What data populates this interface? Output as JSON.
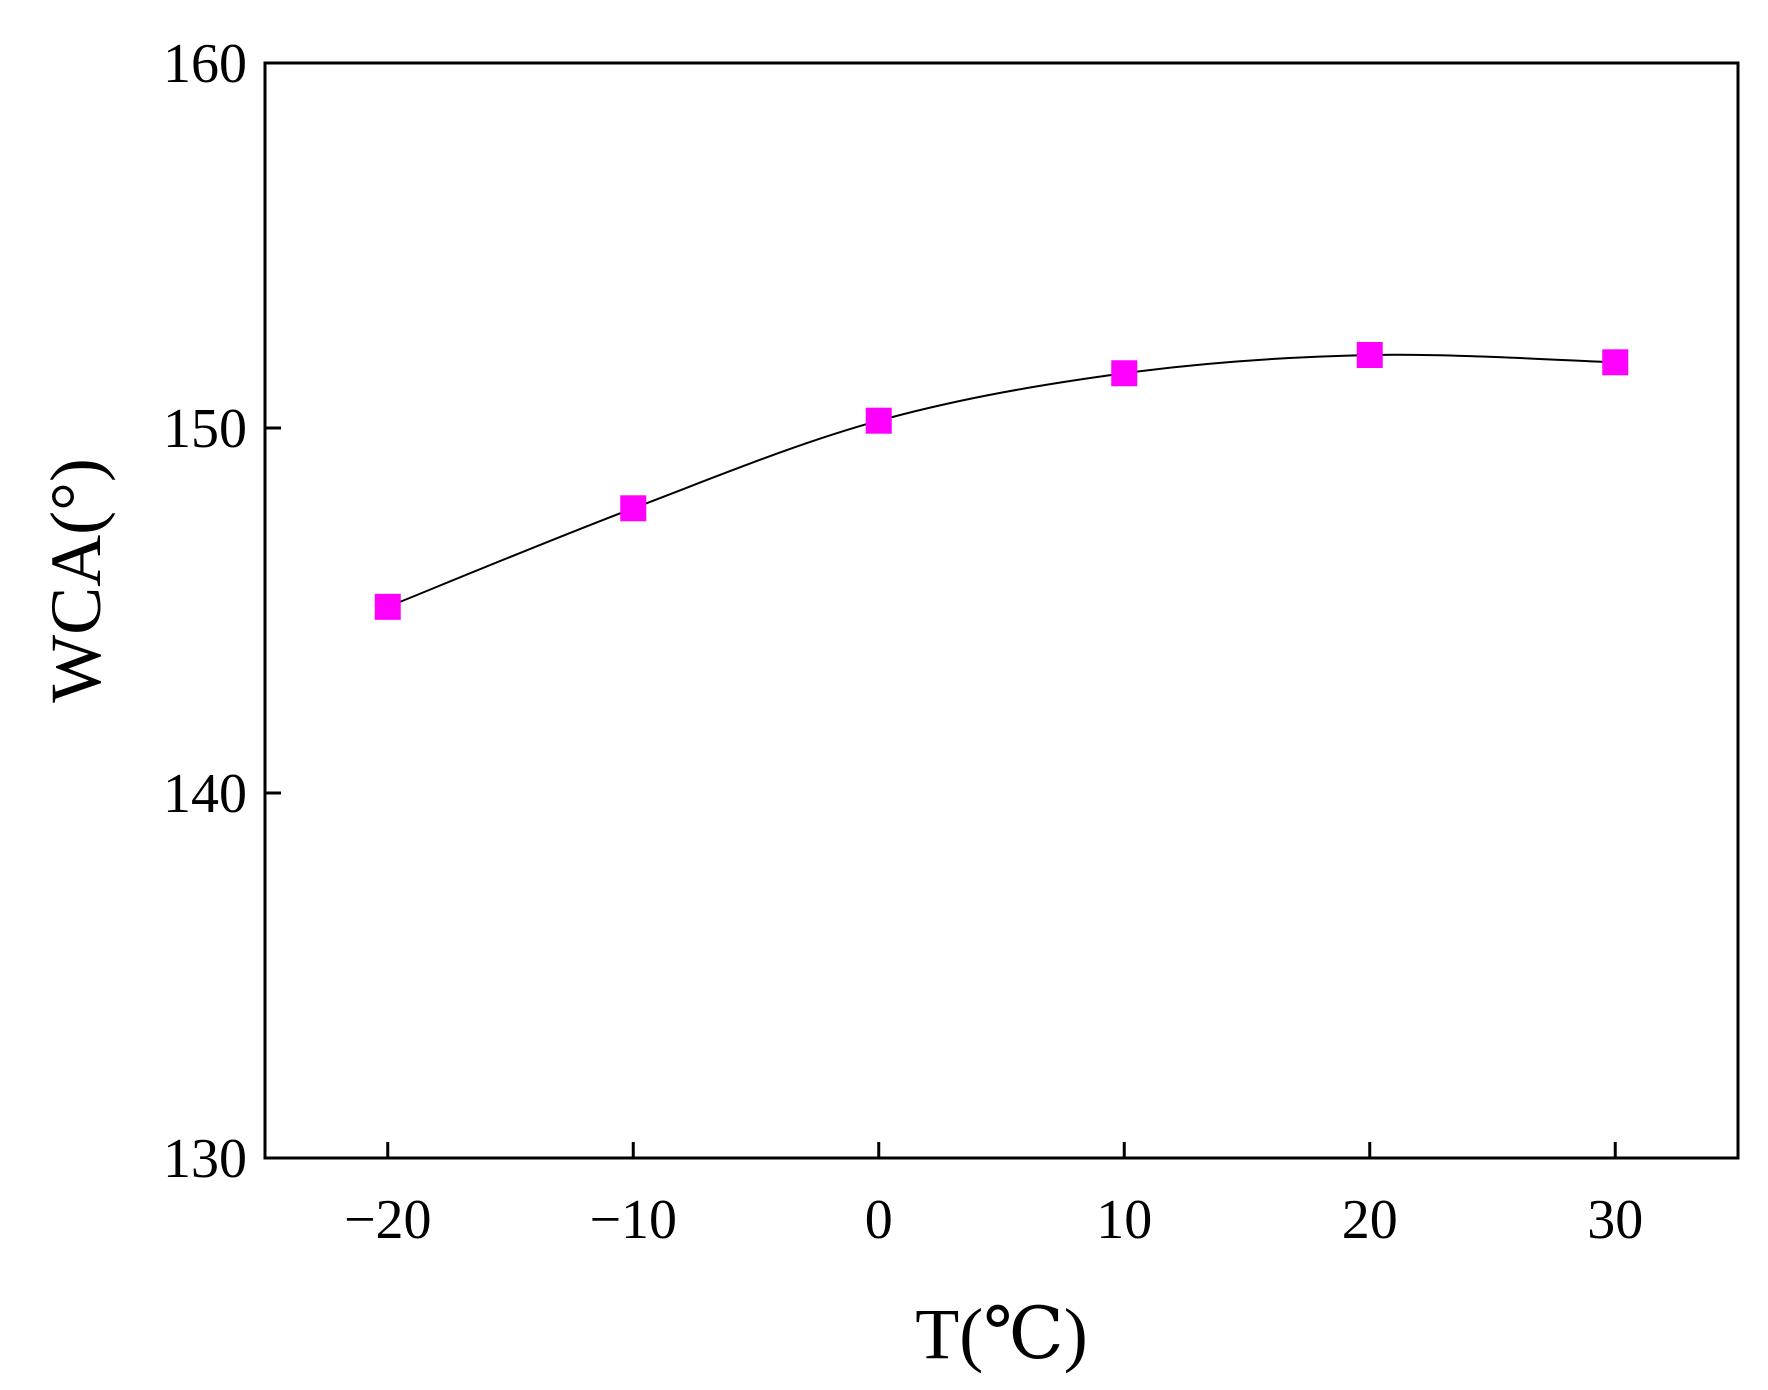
{
  "chart_data": {
    "type": "line",
    "xlabel": "T(℃)",
    "ylabel": "WCA(°)",
    "xlim": [
      -25,
      35
    ],
    "ylim": [
      130,
      160
    ],
    "xticks": [
      -20,
      -10,
      0,
      10,
      20,
      30
    ],
    "xtick_labels": [
      "−20",
      "−10",
      "0",
      "10",
      "20",
      "30"
    ],
    "yticks": [
      130,
      140,
      150,
      160
    ],
    "ytick_labels": [
      "130",
      "140",
      "150",
      "160"
    ],
    "grid": false,
    "legend": "none",
    "series": [
      {
        "x": [
          -20,
          -10,
          0,
          10,
          20,
          30
        ],
        "values": [
          145.1,
          147.8,
          150.2,
          151.5,
          152.0,
          151.8
        ],
        "marker": "square",
        "marker_color": "#ff00ff",
        "line_color": "#000000"
      }
    ]
  }
}
